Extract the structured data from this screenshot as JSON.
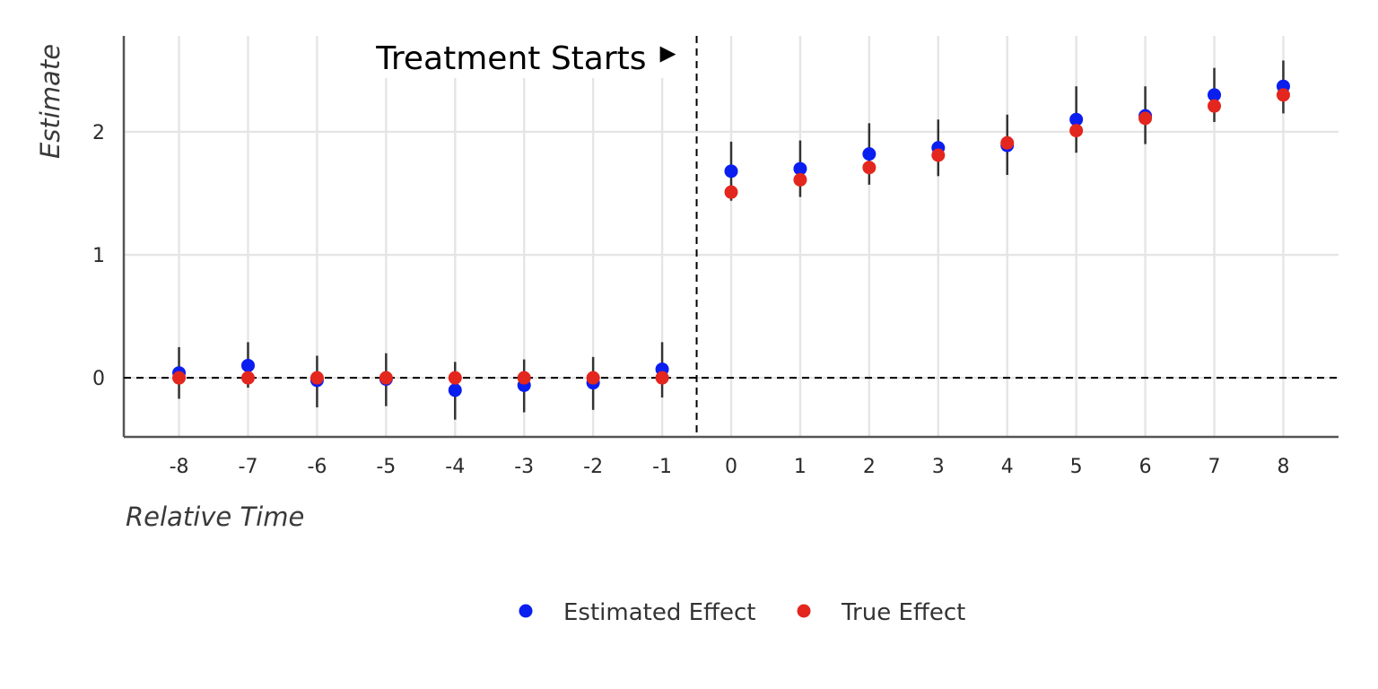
{
  "chart_data": {
    "type": "scatter",
    "title": "",
    "xlabel": "Relative Time",
    "ylabel": "Estimate",
    "x_ticks": [
      -8,
      -7,
      -6,
      -5,
      -4,
      -3,
      -2,
      -1,
      0,
      1,
      2,
      3,
      4,
      5,
      6,
      7,
      8
    ],
    "y_ticks": [
      0,
      1,
      2
    ],
    "xlim": [
      -8.8,
      8.8
    ],
    "ylim": [
      -0.48,
      2.78
    ],
    "grid": true,
    "legend_position": "bottom",
    "reference_lines": {
      "horizontal_y": 0,
      "vertical_x": -0.5
    },
    "annotation": {
      "text": "Treatment Starts",
      "symbol": "▸",
      "x": -0.5
    },
    "series": [
      {
        "name": "Estimated Effect",
        "color": "#0a1ef0",
        "x": [
          -8,
          -7,
          -6,
          -5,
          -4,
          -3,
          -2,
          -1,
          0,
          1,
          2,
          3,
          4,
          5,
          6,
          7,
          8
        ],
        "y": [
          0.04,
          0.1,
          -0.02,
          -0.01,
          -0.1,
          -0.06,
          -0.04,
          0.07,
          1.68,
          1.7,
          1.82,
          1.87,
          1.89,
          2.1,
          2.13,
          2.3,
          2.37
        ],
        "ci_low": [
          -0.17,
          -0.08,
          -0.24,
          -0.23,
          -0.34,
          -0.28,
          -0.26,
          -0.16,
          1.44,
          1.47,
          1.57,
          1.64,
          1.65,
          1.83,
          1.9,
          2.08,
          2.15
        ],
        "ci_high": [
          0.25,
          0.29,
          0.18,
          0.2,
          0.13,
          0.15,
          0.17,
          0.29,
          1.92,
          1.93,
          2.07,
          2.1,
          2.14,
          2.37,
          2.37,
          2.52,
          2.58
        ]
      },
      {
        "name": "True Effect",
        "color": "#e3261e",
        "x": [
          -8,
          -7,
          -6,
          -5,
          -4,
          -3,
          -2,
          -1,
          0,
          1,
          2,
          3,
          4,
          5,
          6,
          7,
          8
        ],
        "y": [
          0,
          0,
          0,
          0,
          0,
          0,
          0,
          0,
          1.51,
          1.61,
          1.71,
          1.81,
          1.91,
          2.01,
          2.11,
          2.21,
          2.3
        ]
      }
    ]
  }
}
